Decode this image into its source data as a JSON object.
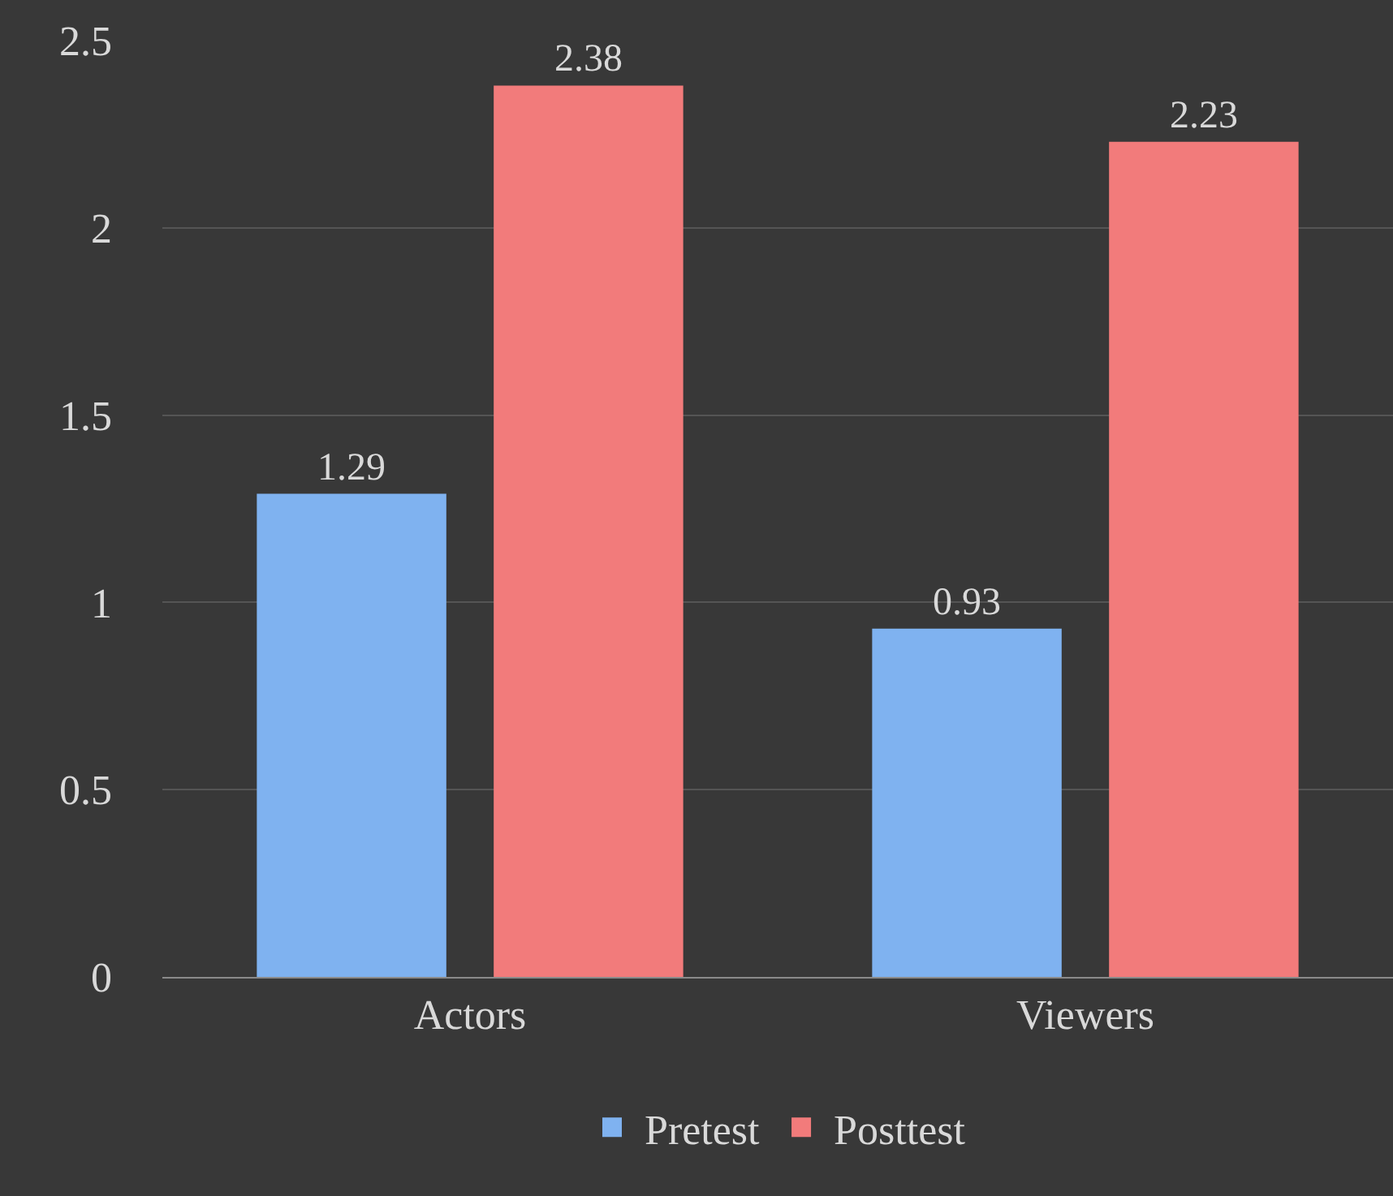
{
  "chart_data": {
    "type": "bar",
    "categories": [
      "Actors",
      "Viewers"
    ],
    "series": [
      {
        "name": "Pretest",
        "color": "#7fb2f0",
        "values": [
          1.29,
          0.93
        ]
      },
      {
        "name": "Posttest",
        "color": "#f27b7b",
        "values": [
          2.38,
          2.23
        ]
      }
    ],
    "ylim": [
      0,
      2.5
    ],
    "yticks": [
      0,
      0.5,
      1,
      1.5,
      2,
      2.5
    ],
    "grid": "y",
    "legend": "bottom",
    "data_labels": true
  }
}
